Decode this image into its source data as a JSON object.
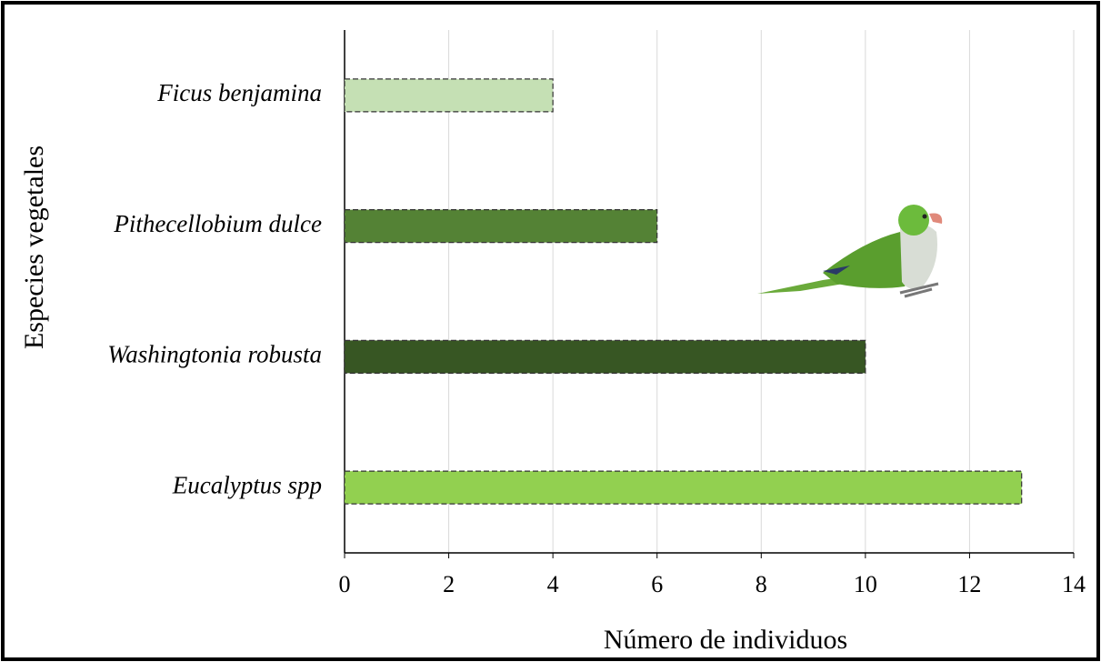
{
  "chart_data": {
    "type": "bar",
    "orientation": "horizontal",
    "categories": [
      "Ficus benjamina",
      "Pithecellobium dulce",
      "Washingtonia robusta",
      "Eucalyptus spp"
    ],
    "values": [
      4,
      6,
      10,
      13
    ],
    "colors": [
      "#c5e0b4",
      "#548235",
      "#375623",
      "#92d050"
    ],
    "x_label": "Número de individuos",
    "y_label": "Especies vegetales",
    "xlim": [
      0,
      14
    ],
    "xticks": [
      0,
      2,
      4,
      6,
      8,
      10,
      12,
      14
    ],
    "grid": true
  }
}
